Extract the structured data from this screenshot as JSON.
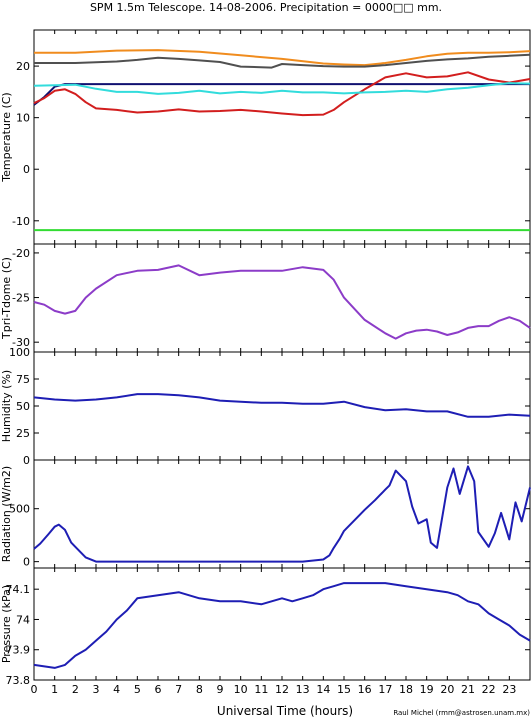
{
  "title": "SPM 1.5m Telescope. 14-08-2006. Precipitation = 0000□□ mm.",
  "credit": "Raul Michel (rmm@astrosen.unam.mx)",
  "shared_x": {
    "label": "Universal Time (hours)",
    "range": [
      0,
      24
    ],
    "ticks": [
      0,
      1,
      2,
      3,
      4,
      5,
      6,
      7,
      8,
      9,
      10,
      11,
      12,
      13,
      14,
      15,
      16,
      17,
      18,
      19,
      20,
      21,
      22,
      23
    ]
  },
  "colors": {
    "orange": "#f08c1e",
    "darkgray": "#505050",
    "navy": "#101070",
    "red": "#d21e1e",
    "cyan": "#32dcdc",
    "green": "#32dc32",
    "purple": "#8c3cc8",
    "blue": "#1e1eb4"
  },
  "chart_data": [
    {
      "type": "line",
      "ylabel": "Temperature (C)",
      "ylim": [
        -14.5,
        27
      ],
      "yticks": [
        "-10",
        "0",
        "10",
        "20"
      ],
      "ytick_values": [
        -10,
        0,
        10,
        20
      ],
      "series": [
        {
          "color_key": "orange",
          "x": [
            0,
            2,
            4,
            6,
            8,
            10,
            12,
            14,
            15,
            16,
            17,
            18,
            19,
            20,
            21,
            22,
            23,
            24
          ],
          "y": [
            22.6,
            22.6,
            23.0,
            23.1,
            22.8,
            22.1,
            21.4,
            20.5,
            20.3,
            20.2,
            20.6,
            21.2,
            21.9,
            22.4,
            22.6,
            22.6,
            22.7,
            22.9
          ]
        },
        {
          "color_key": "darkgray",
          "x": [
            0,
            2,
            4,
            5,
            6,
            7,
            8,
            9,
            10,
            11.5,
            12,
            13,
            14,
            15,
            16,
            17,
            18,
            19,
            20,
            21,
            22,
            23,
            24
          ],
          "y": [
            20.6,
            20.6,
            20.9,
            21.2,
            21.6,
            21.4,
            21.1,
            20.8,
            19.9,
            19.7,
            20.4,
            20.2,
            20.0,
            19.9,
            19.9,
            20.2,
            20.6,
            21.0,
            21.3,
            21.5,
            21.8,
            22.0,
            22.2
          ]
        },
        {
          "color_key": "navy",
          "x": [
            0,
            0.5,
            1,
            1.5,
            2,
            4,
            8,
            12,
            15,
            17,
            19,
            22,
            24
          ],
          "y": [
            12.5,
            14,
            16,
            16.5,
            16.5,
            16.5,
            16.5,
            16.5,
            16.5,
            16.5,
            16.5,
            16.5,
            16.5
          ]
        },
        {
          "color_key": "red",
          "x": [
            0,
            0.5,
            1,
            1.5,
            2,
            2.5,
            3,
            4,
            5,
            6,
            7,
            8,
            9,
            10,
            11,
            12,
            13,
            14,
            14.5,
            15,
            16,
            17,
            18,
            19,
            20,
            21,
            22,
            23,
            24
          ],
          "y": [
            12.8,
            13.8,
            15.2,
            15.5,
            14.6,
            13.0,
            11.8,
            11.5,
            11.0,
            11.2,
            11.6,
            11.2,
            11.3,
            11.5,
            11.2,
            10.8,
            10.5,
            10.6,
            11.5,
            13.0,
            15.5,
            17.8,
            18.6,
            17.8,
            18.0,
            18.8,
            17.4,
            16.8,
            17.5
          ]
        },
        {
          "color_key": "cyan",
          "x": [
            0,
            1,
            2,
            3,
            4,
            5,
            6,
            7,
            8,
            9,
            10,
            11,
            12,
            13,
            14,
            15,
            16,
            17,
            18,
            19,
            20,
            21,
            22,
            23,
            24
          ],
          "y": [
            16.2,
            16.3,
            16.4,
            15.6,
            15.0,
            15.0,
            14.6,
            14.8,
            15.2,
            14.7,
            15.0,
            14.8,
            15.2,
            14.9,
            14.9,
            14.7,
            14.9,
            15.0,
            15.2,
            15.0,
            15.5,
            15.8,
            16.3,
            16.7,
            16.6
          ]
        },
        {
          "color_key": "green",
          "x": [
            0,
            24
          ],
          "y": [
            -11.8,
            -11.8
          ]
        }
      ]
    },
    {
      "type": "line",
      "ylabel": "Tpri-Tdome (C)",
      "ylim": [
        -31.1,
        -19
      ],
      "yticks": [
        "-30",
        "-25",
        "-20"
      ],
      "ytick_values": [
        -30,
        -25,
        -20
      ],
      "series": [
        {
          "color_key": "purple",
          "x": [
            0,
            0.5,
            1,
            1.5,
            2,
            2.5,
            3,
            4,
            5,
            6,
            7,
            8,
            9,
            10,
            11,
            12,
            13,
            14,
            14.5,
            15,
            16,
            17,
            17.5,
            18,
            18.5,
            19,
            19.5,
            20,
            20.5,
            21,
            21.5,
            22,
            22.5,
            23,
            23.5,
            24
          ],
          "y": [
            -25.5,
            -25.8,
            -26.5,
            -26.8,
            -26.5,
            -25.0,
            -24.0,
            -22.5,
            -22.0,
            -21.9,
            -21.4,
            -22.5,
            -22.2,
            -22.0,
            -22.0,
            -22.0,
            -21.6,
            -21.9,
            -23.0,
            -25.0,
            -27.5,
            -29.0,
            -29.6,
            -29.0,
            -28.7,
            -28.6,
            -28.8,
            -29.2,
            -28.9,
            -28.4,
            -28.2,
            -28.2,
            -27.6,
            -27.2,
            -27.6,
            -28.4
          ]
        }
      ]
    },
    {
      "type": "line",
      "ylabel": "Humidity (%)",
      "ylim": [
        0,
        100
      ],
      "yticks": [
        "0",
        "25",
        "50",
        "75",
        "100"
      ],
      "ytick_values": [
        0,
        25,
        50,
        75,
        100
      ],
      "series": [
        {
          "color_key": "blue",
          "x": [
            0,
            1,
            2,
            3,
            4,
            5,
            6,
            7,
            8,
            9,
            10,
            11,
            12,
            13,
            14,
            15,
            16,
            17,
            18,
            19,
            20,
            21,
            22,
            23,
            24
          ],
          "y": [
            58,
            56,
            55,
            56,
            58,
            61,
            61,
            60,
            58,
            55,
            54,
            53,
            53,
            52,
            52,
            54,
            49,
            46,
            47,
            45,
            45,
            40,
            40,
            42,
            41
          ]
        }
      ]
    },
    {
      "type": "line",
      "ylabel": "Radiation (W/m2)",
      "ylim": [
        -60,
        960
      ],
      "yticks": [
        "0",
        "500"
      ],
      "ytick_values": [
        0,
        500
      ],
      "series": [
        {
          "color_key": "blue",
          "x": [
            0,
            0.3,
            0.7,
            1,
            1.2,
            1.5,
            1.8,
            2,
            2.5,
            3,
            5,
            8,
            10,
            12,
            13,
            14,
            14.3,
            14.5,
            14.8,
            15,
            15.5,
            16,
            16.5,
            17,
            17.2,
            17.5,
            18,
            18.3,
            18.6,
            19,
            19.2,
            19.5,
            20,
            20.3,
            20.6,
            21,
            21.3,
            21.5,
            22,
            22.3,
            22.6,
            23,
            23.3,
            23.6,
            24
          ],
          "y": [
            120,
            170,
            260,
            330,
            350,
            300,
            180,
            140,
            40,
            0,
            0,
            0,
            0,
            0,
            0,
            20,
            60,
            130,
            220,
            290,
            390,
            490,
            580,
            680,
            720,
            860,
            760,
            520,
            360,
            400,
            180,
            130,
            700,
            880,
            640,
            900,
            760,
            280,
            140,
            270,
            460,
            210,
            560,
            380,
            700
          ]
        }
      ]
    },
    {
      "type": "line",
      "ylabel": "Pressure (kPa)",
      "ylim": [
        73.8,
        74.17
      ],
      "yticks": [
        "73.8",
        "73.9",
        "74",
        "74.1"
      ],
      "ytick_values": [
        73.8,
        73.9,
        74.0,
        74.1
      ],
      "series": [
        {
          "color_key": "blue",
          "x": [
            0,
            1,
            1.5,
            2,
            2.5,
            3,
            3.5,
            4,
            4.5,
            5,
            6,
            7,
            8,
            9,
            10,
            11,
            12,
            12.5,
            13,
            13.5,
            14,
            14.5,
            15,
            16,
            17,
            18,
            19,
            20,
            20.5,
            21,
            21.5,
            22,
            22.5,
            23,
            23.5,
            24
          ],
          "y": [
            73.85,
            73.84,
            73.85,
            73.88,
            73.9,
            73.93,
            73.96,
            74.0,
            74.03,
            74.07,
            74.08,
            74.09,
            74.07,
            74.06,
            74.06,
            74.05,
            74.07,
            74.06,
            74.07,
            74.08,
            74.1,
            74.11,
            74.12,
            74.12,
            74.12,
            74.11,
            74.1,
            74.09,
            74.08,
            74.06,
            74.05,
            74.02,
            74.0,
            73.98,
            73.95,
            73.93
          ]
        }
      ]
    }
  ]
}
